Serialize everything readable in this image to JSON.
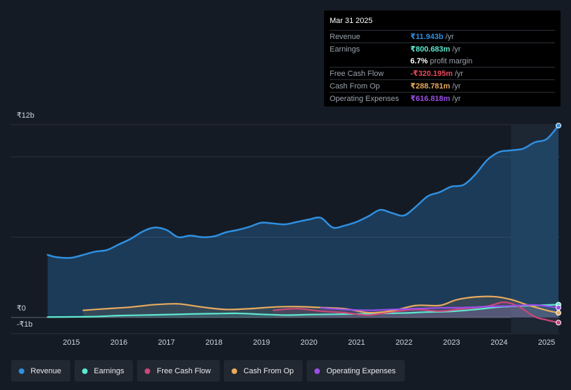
{
  "tooltip": {
    "date": "Mar 31 2025",
    "rows": {
      "revenue": {
        "label": "Revenue",
        "value": "₹11.943b",
        "unit": "/yr"
      },
      "earnings": {
        "label": "Earnings",
        "value": "₹800.683m",
        "unit": "/yr"
      },
      "margin": {
        "value": "6.7%",
        "text": "profit margin"
      },
      "fcf": {
        "label": "Free Cash Flow",
        "value": "-₹320.195m",
        "unit": "/yr"
      },
      "cfo": {
        "label": "Cash From Op",
        "value": "₹288.781m",
        "unit": "/yr"
      },
      "opex": {
        "label": "Operating Expenses",
        "value": "₹616.818m",
        "unit": "/yr"
      }
    }
  },
  "legend": [
    {
      "key": "revenue",
      "label": "Revenue"
    },
    {
      "key": "earnings",
      "label": "Earnings"
    },
    {
      "key": "fcf",
      "label": "Free Cash Flow"
    },
    {
      "key": "cfo",
      "label": "Cash From Op"
    },
    {
      "key": "opex",
      "label": "Operating Expenses"
    }
  ],
  "colors": {
    "revenue": "#2f8fe0",
    "earnings": "#5ee8d0",
    "fcf": "#c9487a",
    "cfo": "#e8aa5e",
    "opex": "#9a4ee8"
  },
  "chart_data": {
    "type": "line",
    "title": "",
    "unit": "₹ billions",
    "ylim": [
      -1,
      12
    ],
    "y_labels": [
      {
        "value": 12,
        "text": "₹12b"
      },
      {
        "value": 0,
        "text": "₹0"
      },
      {
        "value": -1,
        "text": "-₹1b"
      }
    ],
    "xlim": [
      2014.2,
      2025.25
    ],
    "x_ticks": [
      "2015",
      "2016",
      "2017",
      "2018",
      "2019",
      "2020",
      "2021",
      "2022",
      "2023",
      "2024",
      "2025"
    ],
    "forecast_shade_start": 2024.25,
    "series": [
      {
        "name": "Revenue",
        "key": "revenue",
        "area": true,
        "points": [
          [
            2014.5,
            3.9
          ],
          [
            2014.7,
            3.75
          ],
          [
            2015.0,
            3.72
          ],
          [
            2015.25,
            3.9
          ],
          [
            2015.5,
            4.1
          ],
          [
            2015.75,
            4.2
          ],
          [
            2016.0,
            4.55
          ],
          [
            2016.25,
            4.9
          ],
          [
            2016.5,
            5.35
          ],
          [
            2016.75,
            5.6
          ],
          [
            2017.0,
            5.45
          ],
          [
            2017.25,
            5.0
          ],
          [
            2017.5,
            5.1
          ],
          [
            2017.75,
            5.0
          ],
          [
            2018.0,
            5.05
          ],
          [
            2018.25,
            5.3
          ],
          [
            2018.5,
            5.45
          ],
          [
            2018.75,
            5.65
          ],
          [
            2019.0,
            5.9
          ],
          [
            2019.25,
            5.85
          ],
          [
            2019.5,
            5.8
          ],
          [
            2019.75,
            5.95
          ],
          [
            2020.0,
            6.1
          ],
          [
            2020.25,
            6.2
          ],
          [
            2020.5,
            5.6
          ],
          [
            2020.75,
            5.72
          ],
          [
            2021.0,
            5.95
          ],
          [
            2021.25,
            6.3
          ],
          [
            2021.5,
            6.7
          ],
          [
            2021.75,
            6.5
          ],
          [
            2022.0,
            6.35
          ],
          [
            2022.25,
            6.9
          ],
          [
            2022.5,
            7.55
          ],
          [
            2022.75,
            7.8
          ],
          [
            2023.0,
            8.15
          ],
          [
            2023.25,
            8.25
          ],
          [
            2023.5,
            8.9
          ],
          [
            2023.75,
            9.8
          ],
          [
            2024.0,
            10.3
          ],
          [
            2024.25,
            10.4
          ],
          [
            2024.5,
            10.5
          ],
          [
            2024.75,
            10.9
          ],
          [
            2025.0,
            11.1
          ],
          [
            2025.25,
            11.943
          ]
        ]
      },
      {
        "name": "Earnings",
        "key": "earnings",
        "area": false,
        "points": [
          [
            2014.5,
            0.03
          ],
          [
            2015.0,
            0.04
          ],
          [
            2015.5,
            0.06
          ],
          [
            2016.0,
            0.12
          ],
          [
            2016.5,
            0.15
          ],
          [
            2017.0,
            0.18
          ],
          [
            2017.5,
            0.22
          ],
          [
            2018.0,
            0.24
          ],
          [
            2018.5,
            0.26
          ],
          [
            2019.0,
            0.2
          ],
          [
            2019.5,
            0.15
          ],
          [
            2020.0,
            0.18
          ],
          [
            2020.5,
            0.2
          ],
          [
            2021.0,
            0.22
          ],
          [
            2021.5,
            0.25
          ],
          [
            2022.0,
            0.28
          ],
          [
            2022.5,
            0.34
          ],
          [
            2023.0,
            0.38
          ],
          [
            2023.5,
            0.5
          ],
          [
            2024.0,
            0.65
          ],
          [
            2024.5,
            0.72
          ],
          [
            2025.0,
            0.78
          ],
          [
            2025.25,
            0.800683
          ]
        ]
      },
      {
        "name": "Free Cash Flow",
        "key": "fcf",
        "area": false,
        "points": [
          [
            2019.25,
            0.45
          ],
          [
            2019.75,
            0.55
          ],
          [
            2020.25,
            0.4
          ],
          [
            2020.75,
            0.3
          ],
          [
            2021.25,
            0.15
          ],
          [
            2021.75,
            0.35
          ],
          [
            2022.25,
            0.5
          ],
          [
            2022.75,
            0.4
          ],
          [
            2023.25,
            0.55
          ],
          [
            2023.75,
            0.7
          ],
          [
            2024.1,
            0.95
          ],
          [
            2024.4,
            0.7
          ],
          [
            2024.75,
            0.05
          ],
          [
            2025.0,
            -0.15
          ],
          [
            2025.25,
            -0.320195
          ]
        ]
      },
      {
        "name": "Cash From Op",
        "key": "cfo",
        "area": false,
        "points": [
          [
            2015.25,
            0.45
          ],
          [
            2015.75,
            0.55
          ],
          [
            2016.25,
            0.65
          ],
          [
            2016.75,
            0.8
          ],
          [
            2017.25,
            0.85
          ],
          [
            2017.75,
            0.65
          ],
          [
            2018.25,
            0.5
          ],
          [
            2018.75,
            0.55
          ],
          [
            2019.25,
            0.65
          ],
          [
            2019.75,
            0.68
          ],
          [
            2020.25,
            0.62
          ],
          [
            2020.75,
            0.55
          ],
          [
            2021.25,
            0.3
          ],
          [
            2021.75,
            0.42
          ],
          [
            2022.25,
            0.75
          ],
          [
            2022.75,
            0.75
          ],
          [
            2023.1,
            1.1
          ],
          [
            2023.5,
            1.28
          ],
          [
            2023.9,
            1.3
          ],
          [
            2024.25,
            1.12
          ],
          [
            2024.6,
            0.78
          ],
          [
            2025.0,
            0.45
          ],
          [
            2025.25,
            0.288781
          ]
        ]
      },
      {
        "name": "Operating Expenses",
        "key": "opex",
        "area": false,
        "points": [
          [
            2020.25,
            0.6
          ],
          [
            2020.75,
            0.5
          ],
          [
            2021.25,
            0.45
          ],
          [
            2021.75,
            0.5
          ],
          [
            2022.25,
            0.55
          ],
          [
            2022.75,
            0.6
          ],
          [
            2023.25,
            0.62
          ],
          [
            2023.75,
            0.68
          ],
          [
            2024.25,
            0.72
          ],
          [
            2024.75,
            0.78
          ],
          [
            2025.25,
            0.616818
          ]
        ]
      }
    ]
  }
}
